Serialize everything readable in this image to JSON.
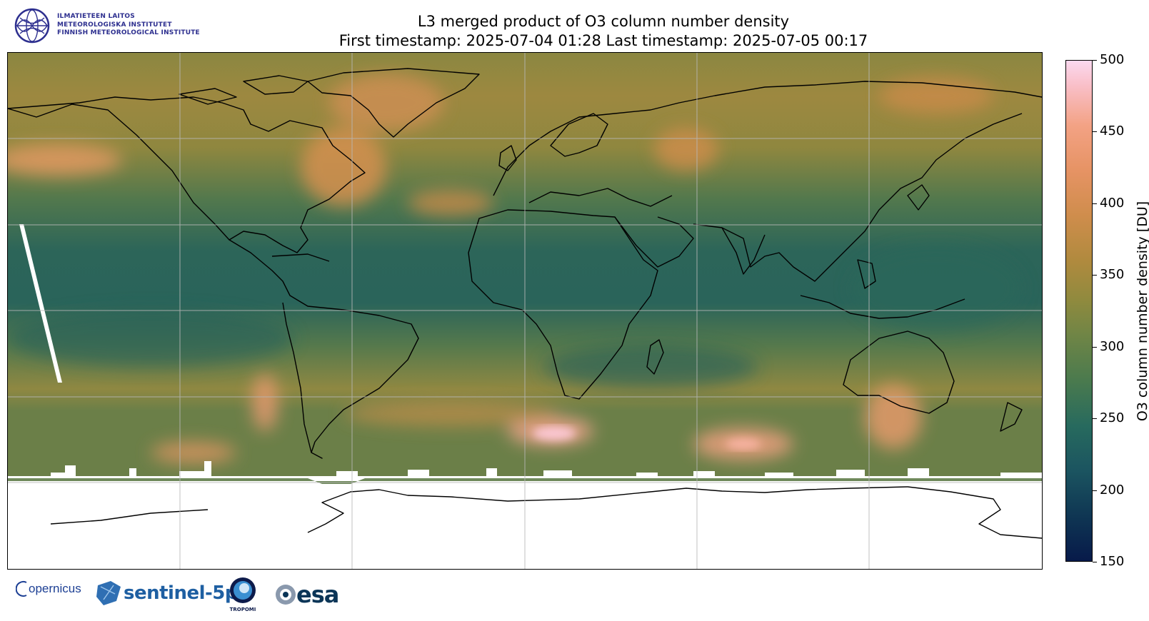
{
  "header": {
    "title_line1": "L3 merged product of O3 column number density",
    "title_line2": "First timestamp: 2025-07-04 01:28   Last timestamp: 2025-07-05 00:17"
  },
  "institute_logo": {
    "lines": [
      "ILMATIETEEN LAITOS",
      "METEOROLOGISKA INSTITUTET",
      "FINNISH METEOROLOGICAL INSTITUTE"
    ],
    "color": "#2d2f8f"
  },
  "colorbar": {
    "label": "O3 column number density [DU]",
    "min": 150,
    "max": 500,
    "ticks": [
      "500",
      "450",
      "400",
      "350",
      "300",
      "250",
      "200",
      "150"
    ],
    "colors": [
      "#071a4a",
      "#1b5460",
      "#4a7a4e",
      "#8f8a3e",
      "#cf8d4c",
      "#f3a284",
      "#fbd9ef"
    ]
  },
  "map": {
    "projection": "plate-carree",
    "lon_range": [
      -180,
      180
    ],
    "lat_range": [
      -90,
      90
    ],
    "gridlines": true,
    "no_data_color": "#ffffff"
  },
  "footer_logos": {
    "copernicus": "opernicus",
    "sentinel": "sentinel-5p",
    "tropomi": "TROPOMI",
    "esa": "esa"
  }
}
